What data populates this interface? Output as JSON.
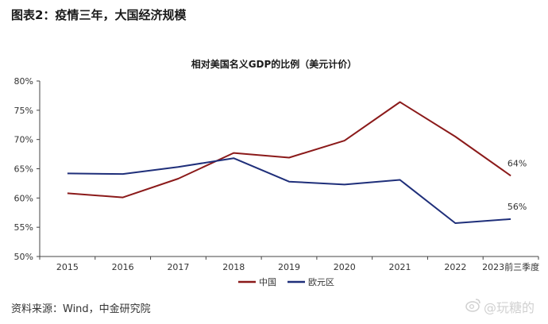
{
  "figure_title": "图表2：疫情三年，大国经济规模",
  "source": "资料来源：Wind，中金研究院",
  "watermark": "@玩糖的",
  "chart_data": {
    "type": "line",
    "title": "相对美国名义GDP的比例（美元计价）",
    "xlabel": "",
    "ylabel": "",
    "categories": [
      "2015",
      "2016",
      "2017",
      "2018",
      "2019",
      "2020",
      "2021",
      "2022",
      "2023前三季度"
    ],
    "y_ticks": [
      "50%",
      "55%",
      "60%",
      "65%",
      "70%",
      "75%",
      "80%"
    ],
    "ylim": [
      50,
      80
    ],
    "grid": false,
    "legend_position": "bottom",
    "series": [
      {
        "name": "中国",
        "color": "#8b1a1a",
        "values": [
          60.8,
          60.1,
          63.3,
          67.7,
          66.9,
          69.8,
          76.4,
          70.5,
          63.8
        ]
      },
      {
        "name": "欧元区",
        "color": "#1f2f7a",
        "values": [
          64.2,
          64.1,
          65.3,
          66.8,
          62.8,
          62.3,
          63.1,
          55.7,
          56.4
        ]
      }
    ],
    "annotations": [
      {
        "text": "64%",
        "series": "中国",
        "index": 8
      },
      {
        "text": "56%",
        "series": "欧元区",
        "index": 8
      }
    ]
  }
}
